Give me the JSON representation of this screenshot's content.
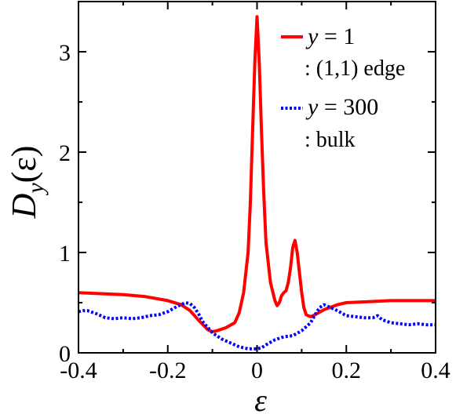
{
  "chart_data": {
    "type": "line",
    "xlabel": "ε",
    "ylabel_symbol": "D",
    "ylabel_subscript": "y",
    "ylabel_arg": "(ε)",
    "xlim": [
      -0.4,
      0.4
    ],
    "ylim": [
      0,
      3.5
    ],
    "xticks": [
      -0.4,
      -0.2,
      0,
      0.2,
      0.4
    ],
    "xtick_labels": [
      "-0.4",
      "-0.2",
      "0",
      "0.2",
      "0.4"
    ],
    "yticks": [
      0,
      1,
      2,
      3
    ],
    "ytick_labels": [
      "0",
      "1",
      "2",
      "3"
    ],
    "legend_position": "top-right",
    "series": [
      {
        "name_var": "y",
        "name_eq": " = 1",
        "name_desc": ": (1,1) edge",
        "color": "#ff0000",
        "style": "solid",
        "x": [
          -0.4,
          -0.35,
          -0.3,
          -0.25,
          -0.2,
          -0.17,
          -0.15,
          -0.13,
          -0.11,
          -0.1,
          -0.09,
          -0.07,
          -0.05,
          -0.04,
          -0.03,
          -0.02,
          -0.015,
          -0.01,
          -0.005,
          0.0,
          0.005,
          0.01,
          0.015,
          0.02,
          0.03,
          0.04,
          0.045,
          0.05,
          0.055,
          0.06,
          0.065,
          0.07,
          0.075,
          0.08,
          0.085,
          0.09,
          0.095,
          0.1,
          0.105,
          0.11,
          0.12,
          0.13,
          0.15,
          0.18,
          0.2,
          0.25,
          0.3,
          0.35,
          0.4
        ],
        "y": [
          0.6,
          0.59,
          0.58,
          0.56,
          0.52,
          0.48,
          0.42,
          0.32,
          0.23,
          0.21,
          0.22,
          0.25,
          0.3,
          0.4,
          0.6,
          1.0,
          1.5,
          2.2,
          2.9,
          3.35,
          2.9,
          2.2,
          1.6,
          1.1,
          0.7,
          0.52,
          0.47,
          0.5,
          0.57,
          0.6,
          0.62,
          0.7,
          0.85,
          1.05,
          1.12,
          1.0,
          0.8,
          0.6,
          0.45,
          0.38,
          0.36,
          0.38,
          0.43,
          0.48,
          0.5,
          0.51,
          0.52,
          0.52,
          0.52
        ]
      },
      {
        "name_var": "y",
        "name_eq": " = 300",
        "name_desc": ": bulk",
        "color": "#0000ff",
        "style": "dotted",
        "x": [
          -0.4,
          -0.39,
          -0.38,
          -0.36,
          -0.34,
          -0.32,
          -0.3,
          -0.28,
          -0.26,
          -0.24,
          -0.22,
          -0.2,
          -0.18,
          -0.16,
          -0.15,
          -0.14,
          -0.13,
          -0.12,
          -0.1,
          -0.08,
          -0.06,
          -0.04,
          -0.02,
          0.0,
          0.01,
          0.02,
          0.04,
          0.06,
          0.08,
          0.1,
          0.12,
          0.13,
          0.14,
          0.15,
          0.16,
          0.18,
          0.2,
          0.22,
          0.24,
          0.26,
          0.27,
          0.28,
          0.3,
          0.32,
          0.34,
          0.36,
          0.38,
          0.4
        ],
        "y": [
          0.41,
          0.42,
          0.42,
          0.39,
          0.35,
          0.34,
          0.35,
          0.34,
          0.35,
          0.37,
          0.38,
          0.41,
          0.46,
          0.5,
          0.49,
          0.45,
          0.38,
          0.3,
          0.2,
          0.14,
          0.1,
          0.06,
          0.04,
          0.04,
          0.05,
          0.08,
          0.13,
          0.16,
          0.17,
          0.22,
          0.3,
          0.38,
          0.45,
          0.48,
          0.46,
          0.42,
          0.37,
          0.36,
          0.35,
          0.35,
          0.37,
          0.33,
          0.3,
          0.29,
          0.28,
          0.29,
          0.28,
          0.28
        ]
      }
    ]
  }
}
